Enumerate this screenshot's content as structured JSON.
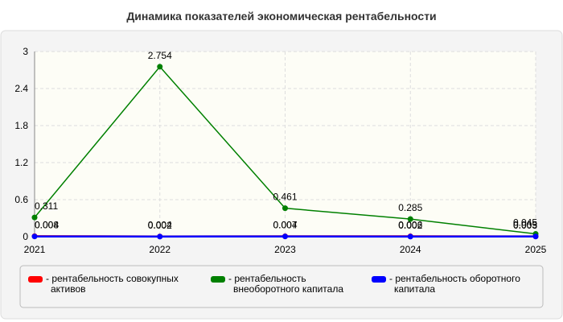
{
  "chart_data": {
    "type": "line",
    "title": "Динамика показателей экономическая рентабельности",
    "categories": [
      "2021",
      "2022",
      "2023",
      "2024",
      "2025"
    ],
    "series": [
      {
        "name": "рентабельность совокупных активов",
        "color": "#ff0000",
        "values": [
          0.008,
          0.004,
          0.007,
          0.006,
          0.005
        ]
      },
      {
        "name": "рентабельность внеоборотного капитала",
        "color": "#008000",
        "values": [
          0.311,
          2.754,
          0.461,
          0.285,
          0.045
        ]
      },
      {
        "name": "рентабельность оборотного капитала",
        "color": "#0000ff",
        "values": [
          0.004,
          0.002,
          0.004,
          0.002,
          0.003
        ]
      }
    ],
    "ylim": [
      0,
      3
    ],
    "yticks": [
      0,
      0.6,
      1.2,
      1.8,
      2.4,
      3
    ],
    "grid": true,
    "legend": "bottom"
  }
}
